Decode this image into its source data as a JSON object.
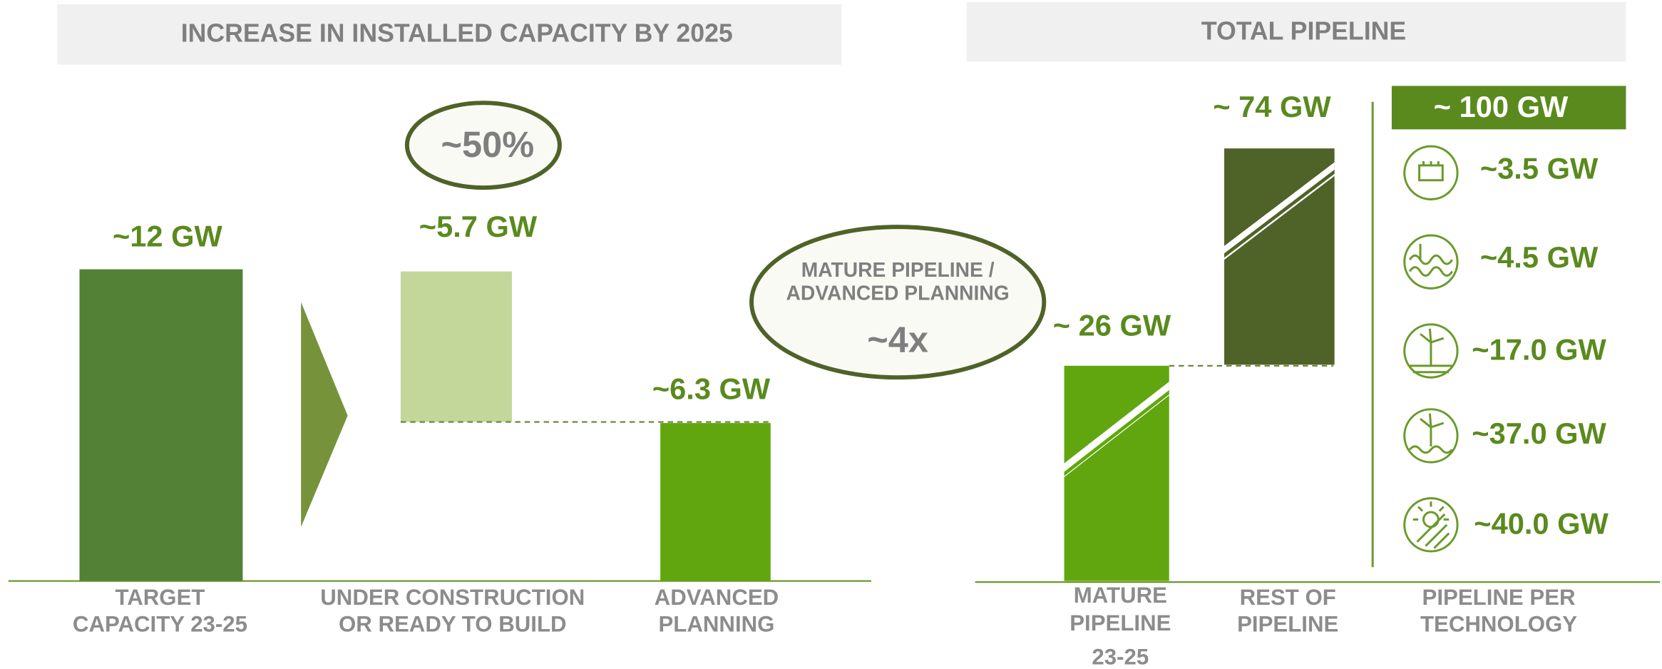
{
  "left": {
    "title": "INCREASE IN INSTALLED CAPACITY BY 2025",
    "share": "~50%",
    "bars": [
      {
        "value_label": "~12 GW",
        "label": [
          "TARGET",
          "CAPACITY 23-25"
        ]
      },
      {
        "value_label": "~5.7 GW",
        "label": [
          "UNDER CONSTRUCTION",
          "OR READY TO BUILD"
        ]
      },
      {
        "value_label": "~6.3 GW",
        "label": [
          "ADVANCED",
          "PLANNING"
        ]
      }
    ]
  },
  "callout": {
    "text": [
      "MATURE PIPELINE /",
      "ADVANCED PLANNING"
    ],
    "multiple": "~4x"
  },
  "right": {
    "title": "TOTAL PIPELINE",
    "bars": [
      {
        "value_label": "~ 26 GW",
        "label": [
          "MATURE",
          "PIPELINE",
          "23-25"
        ]
      },
      {
        "value_label": "~ 74 GW",
        "label": [
          "REST OF",
          "PIPELINE"
        ]
      }
    ],
    "technology_label": [
      "PIPELINE PER",
      "TECHNOLOGY"
    ],
    "total": "~ 100 GW",
    "technologies": [
      "~3.5 GW",
      "~4.5 GW",
      "~17.0 GW",
      "~37.0 GW",
      "~40.0 GW"
    ]
  }
}
